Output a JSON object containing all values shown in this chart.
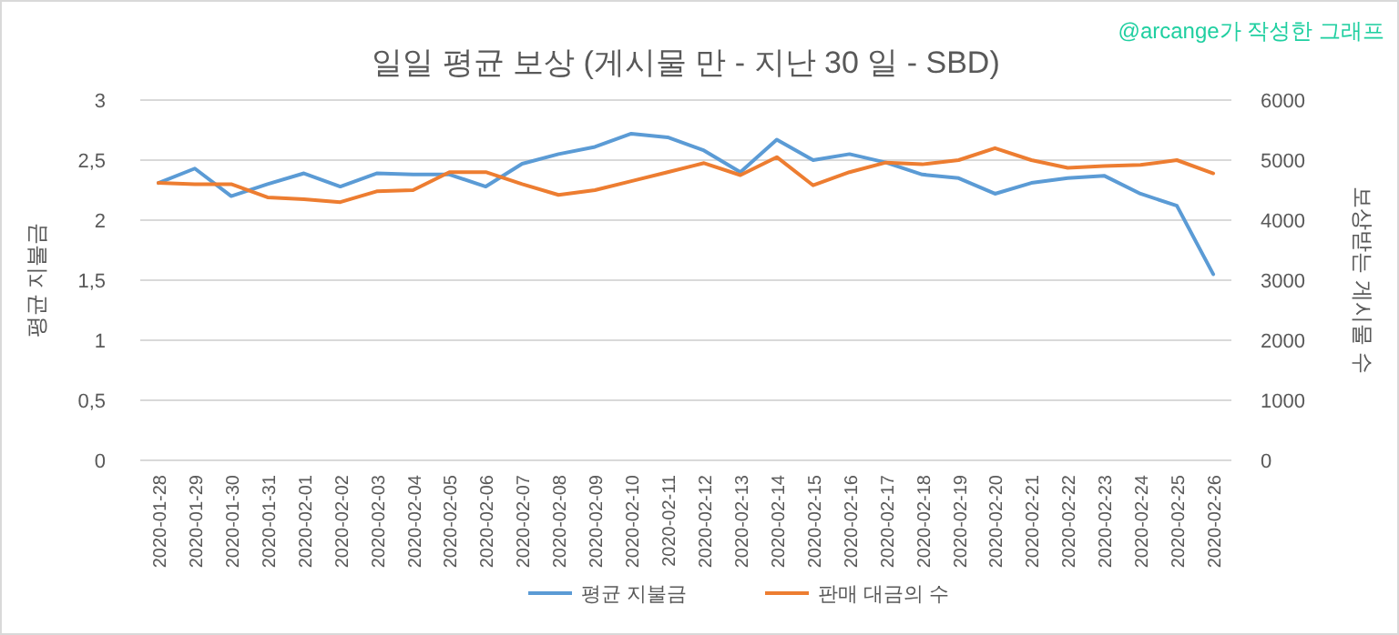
{
  "chart_data": {
    "type": "line",
    "title": "일일 평균 보상 (게시물 만 - 지난 30 일 - SBD)",
    "ylabel": "평균 지불금",
    "y2label": "보상받는 게시물 수",
    "annotations": [
      "@arcange가 작성한 그래프"
    ],
    "categories": [
      "2020-01-28",
      "2020-01-29",
      "2020-01-30",
      "2020-01-31",
      "2020-02-01",
      "2020-02-02",
      "2020-02-03",
      "2020-02-04",
      "2020-02-05",
      "2020-02-06",
      "2020-02-07",
      "2020-02-08",
      "2020-02-09",
      "2020-02-10",
      "2020-02-11",
      "2020-02-12",
      "2020-02-13",
      "2020-02-14",
      "2020-02-15",
      "2020-02-16",
      "2020-02-17",
      "2020-02-18",
      "2020-02-19",
      "2020-02-20",
      "2020-02-21",
      "2020-02-22",
      "2020-02-23",
      "2020-02-24",
      "2020-02-25",
      "2020-02-26"
    ],
    "series": [
      {
        "name": "평균 지불금",
        "color": "#5b9bd5",
        "values": [
          2.31,
          2.43,
          2.2,
          2.3,
          2.39,
          2.28,
          2.39,
          2.38,
          2.38,
          2.28,
          2.47,
          2.55,
          2.61,
          2.72,
          2.69,
          2.58,
          2.4,
          2.67,
          2.5,
          2.55,
          2.48,
          2.38,
          2.35,
          2.22,
          2.31,
          2.35,
          2.37,
          2.22,
          2.12,
          1.55
        ]
      },
      {
        "name": "판매 대금의 수",
        "color": "#ed7d31",
        "axis": "y2",
        "values": [
          4620,
          4600,
          4600,
          4380,
          4350,
          4300,
          4480,
          4500,
          4800,
          4800,
          4600,
          4420,
          4500,
          4650,
          4800,
          4950,
          4750,
          5050,
          4580,
          4800,
          4960,
          4930,
          5000,
          5200,
          5000,
          4870,
          4900,
          4920,
          5000,
          4780
        ]
      }
    ],
    "ylim": [
      0,
      3
    ],
    "yticks": [
      0,
      {
        "value": 0.5,
        "label": "0,5"
      },
      1,
      {
        "value": 1.5,
        "label": "1,5"
      },
      2,
      {
        "value": 2.5,
        "label": "2,5"
      },
      3
    ],
    "y2lim": [
      0,
      6000
    ],
    "y2ticks": [
      0,
      1000,
      2000,
      3000,
      4000,
      5000,
      6000
    ],
    "grid": "y",
    "legend": "bottom",
    "marker": "none",
    "line_style": "solid"
  }
}
